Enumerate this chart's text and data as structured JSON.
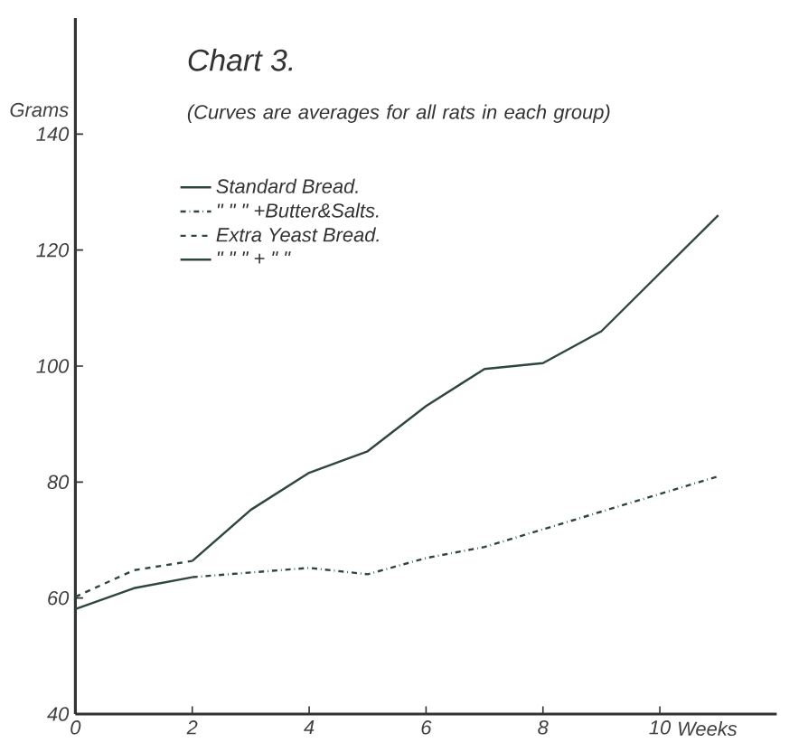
{
  "chart_data": {
    "type": "line",
    "title": "Chart 3.",
    "subtitle": "(Curves are averages for all rats in each group)",
    "xlabel": "Weeks",
    "ylabel": "Grams",
    "xlim": [
      0,
      12
    ],
    "xticks": [
      0,
      2,
      4,
      6,
      8,
      10
    ],
    "ylim": [
      40,
      160
    ],
    "yticks": [
      40,
      60,
      80,
      100,
      120,
      140
    ],
    "grid": false,
    "legend": "top left",
    "marker": "none",
    "series": [
      {
        "name": "Standard Bread.",
        "color": "#2f4540",
        "line_style": "solid",
        "x": [
          2,
          3,
          4,
          5,
          6,
          7,
          8,
          9,
          11
        ],
        "values": [
          66.4,
          75.2,
          81.6,
          85.3,
          93.1,
          99.5,
          100.5,
          106,
          126
        ]
      },
      {
        "name": "\"     \"     \" +Butter&Salts.",
        "color": "#2f4540",
        "line_style": "dashdot",
        "x": [
          2,
          4,
          5,
          6,
          7,
          11
        ],
        "values": [
          63.6,
          65.2,
          64.1,
          66.9,
          68.8,
          81
        ]
      },
      {
        "name": "Extra Yeast Bread.",
        "color": "#2f4540",
        "line_style": "dashed",
        "x": [
          0,
          1,
          2
        ],
        "values": [
          60.2,
          64.8,
          66.4
        ]
      },
      {
        "name": "\"   \"   \" +   \"   \"",
        "color": "#2f4540",
        "line_style": "solid",
        "x": [
          0,
          1,
          2
        ],
        "values": [
          58.1,
          61.7,
          63.6
        ]
      }
    ]
  }
}
